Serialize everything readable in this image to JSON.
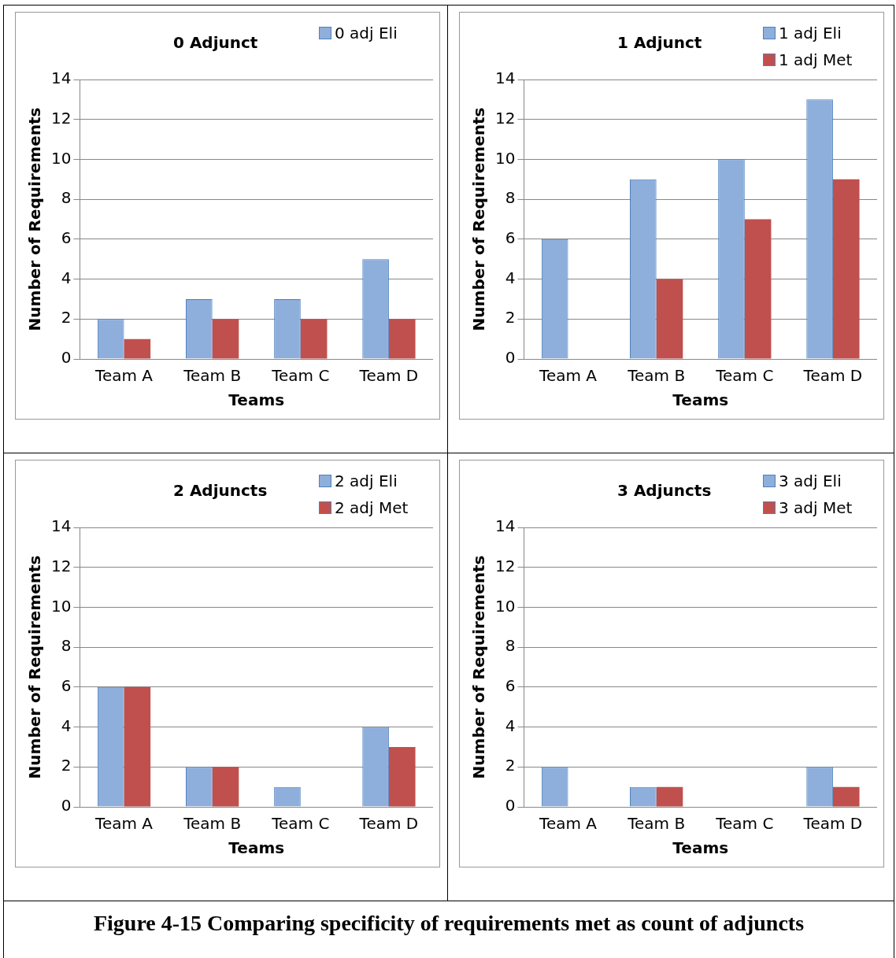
{
  "chart_data": [
    {
      "type": "bar",
      "title": "0 Adjunct",
      "xlabel": "Teams",
      "ylabel": "Number of Requirements",
      "categories": [
        "Team A",
        "Team B",
        "Team C",
        "Team D"
      ],
      "series": [
        {
          "name": "0 adj Eli",
          "color": "#8eaedb",
          "values": [
            2,
            3,
            3,
            5
          ]
        },
        {
          "color": "#c0504d",
          "values": [
            1,
            2,
            2,
            2
          ]
        }
      ],
      "ylim": [
        0,
        14
      ],
      "yticks": [
        0,
        2,
        4,
        6,
        8,
        10,
        12,
        14
      ],
      "grid": "y",
      "legend": "top right"
    },
    {
      "type": "bar",
      "title": "1 Adjunct",
      "xlabel": "Teams",
      "ylabel": "Number of Requirements",
      "categories": [
        "Team A",
        "Team B",
        "Team C",
        "Team D"
      ],
      "series": [
        {
          "name": "1 adj Eli",
          "color": "#8eaedb",
          "values": [
            6,
            9,
            10,
            13
          ]
        },
        {
          "name": "1 adj Met",
          "color": "#c0504d",
          "values": [
            0,
            4,
            7,
            9
          ]
        }
      ],
      "ylim": [
        0,
        14
      ],
      "yticks": [
        0,
        2,
        4,
        6,
        8,
        10,
        12,
        14
      ],
      "grid": "y",
      "legend": "top right"
    },
    {
      "type": "bar",
      "title": "2 Adjuncts",
      "xlabel": "Teams",
      "ylabel": "Number of Requirements",
      "categories": [
        "Team A",
        "Team B",
        "Team C",
        "Team D"
      ],
      "series": [
        {
          "name": "2 adj Eli",
          "color": "#8eaedb",
          "values": [
            6,
            2,
            1,
            4
          ]
        },
        {
          "name": "2 adj Met",
          "color": "#c0504d",
          "values": [
            6,
            2,
            0,
            3
          ]
        }
      ],
      "ylim": [
        0,
        14
      ],
      "yticks": [
        0,
        2,
        4,
        6,
        8,
        10,
        12,
        14
      ],
      "grid": "y",
      "legend": "top right"
    },
    {
      "type": "bar",
      "title": "3 Adjuncts",
      "xlabel": "Teams",
      "ylabel": "Number of Requirements",
      "categories": [
        "Team A",
        "Team B",
        "Team C",
        "Team D"
      ],
      "series": [
        {
          "name": "3 adj Eli",
          "color": "#8eaedb",
          "values": [
            2,
            1,
            0,
            2
          ]
        },
        {
          "name": "3 adj Met",
          "color": "#c0504d",
          "values": [
            0,
            1,
            0,
            1
          ]
        }
      ],
      "ylim": [
        0,
        14
      ],
      "yticks": [
        0,
        2,
        4,
        6,
        8,
        10,
        12,
        14
      ],
      "grid": "y",
      "legend": "top right"
    },
    {
      "type": "other",
      "annotations": [
        "Figure 4-15 Comparing specificity of requirements met as count of adjuncts"
      ]
    }
  ]
}
